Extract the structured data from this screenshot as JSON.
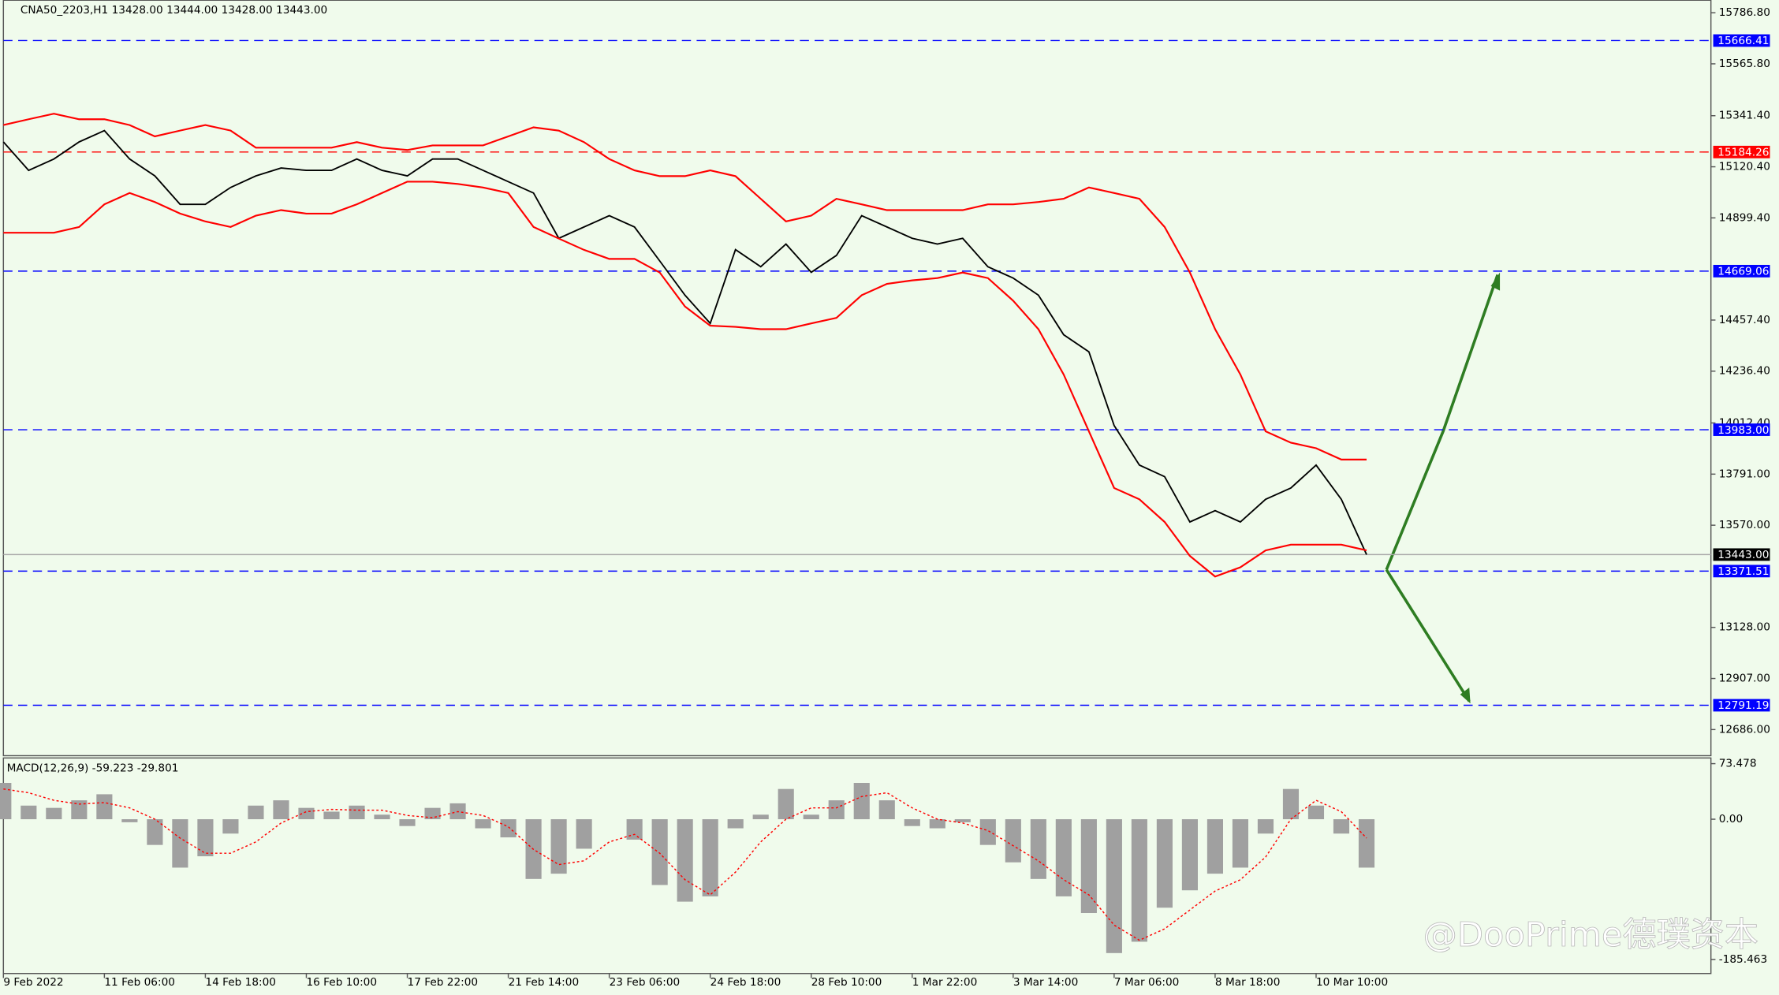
{
  "chart_data": [
    {
      "type": "line",
      "title": "CNA50_2203,H1  13428.00 13444.00 13428.00 13443.00",
      "categories": [
        "9 Feb 2022",
        null,
        null,
        null,
        "11 Feb 06:00",
        null,
        null,
        null,
        "14 Feb 18:00",
        null,
        null,
        null,
        "16 Feb 10:00",
        null,
        null,
        null,
        "17 Feb 22:00",
        null,
        null,
        null,
        "21 Feb 14:00",
        null,
        null,
        null,
        "23 Feb 06:00",
        null,
        null,
        null,
        "24 Feb 18:00",
        null,
        null,
        null,
        "28 Feb 10:00",
        null,
        null,
        null,
        "1 Mar 22:00",
        null,
        null,
        null,
        "3 Mar 14:00",
        null,
        null,
        null,
        "7 Mar 06:00",
        null,
        null,
        null,
        "8 Mar 18:00",
        null,
        null,
        null,
        "10 Mar 10:00",
        null,
        null
      ],
      "series": [
        {
          "color": "#000000",
          "values": [
            15228,
            15105,
            15154,
            15228,
            15277,
            15154,
            15081,
            14958,
            14958,
            15031,
            15081,
            15115,
            15105,
            15105,
            15154,
            15105,
            15081,
            15154,
            15154,
            15105,
            15056,
            15007,
            14811,
            14860,
            14909,
            14860,
            14713,
            14565,
            14443,
            14762,
            14688,
            14786,
            14664,
            14737,
            14909,
            14860,
            14811,
            14786,
            14811,
            14688,
            14639,
            14565,
            14394,
            14320,
            14001,
            13830,
            13780,
            13584,
            13633,
            13584,
            13682,
            13731,
            13830,
            13682,
            13443
          ]
        },
        {
          "color": "#ff0000",
          "values": [
            15301,
            15326,
            15350,
            15326,
            15326,
            15301,
            15252,
            15277,
            15301,
            15277,
            15203,
            15203,
            15203,
            15203,
            15227,
            15203,
            15193,
            15213,
            15213,
            15213,
            15252,
            15291,
            15277,
            15227,
            15154,
            15105,
            15080,
            15080,
            15105,
            15080,
            14982,
            14884,
            14909,
            14982,
            14958,
            14933,
            14933,
            14933,
            14933,
            14958,
            14958,
            14968,
            14982,
            15031,
            15007,
            14982,
            14860,
            14663,
            14418,
            14222,
            13976,
            13927,
            13903,
            13854,
            13854
          ]
        },
        {
          "color": "#ff0000",
          "values": [
            14835,
            14835,
            14835,
            14860,
            14958,
            15007,
            14968,
            14918,
            14884,
            14860,
            14909,
            14933,
            14918,
            14918,
            14958,
            15007,
            15056,
            15056,
            15046,
            15031,
            15007,
            14860,
            14810,
            14761,
            14722,
            14722,
            14663,
            14516,
            14433,
            14428,
            14418,
            14418,
            14443,
            14467,
            14565,
            14614,
            14629,
            14639,
            14663,
            14639,
            14541,
            14418,
            14222,
            13976,
            13731,
            13682,
            13584,
            13437,
            13348,
            13388,
            13461,
            13486,
            13486,
            13486,
            13461
          ]
        }
      ],
      "ylim": [
        12573,
        15841
      ],
      "yticks": [
        {
          "value": 15786.8,
          "label": "15786.80"
        },
        {
          "value": 15565.8,
          "label": "15565.80"
        },
        {
          "value": 15341.4,
          "label": "15341.40"
        },
        {
          "value": 15120.4,
          "label": "15120.40"
        },
        {
          "value": 14899.4,
          "label": "14899.40"
        },
        {
          "value": 14457.4,
          "label": "14457.40"
        },
        {
          "value": 14236.4,
          "label": "14236.40"
        },
        {
          "value": 14012.4,
          "label": "14012.40"
        },
        {
          "value": 13791,
          "label": "13791.00"
        },
        {
          "value": 13570,
          "label": "13570.00"
        },
        {
          "value": 13128,
          "label": "13128.00"
        },
        {
          "value": 12907,
          "label": "12907.00"
        },
        {
          "value": 12686,
          "label": "12686.00"
        }
      ],
      "levels": [
        {
          "value": 15666.41,
          "label": "15666.41",
          "color": "#0000ff"
        },
        {
          "value": 15184.26,
          "label": "15184.26",
          "color": "#ff0000"
        },
        {
          "value": 14669.06,
          "label": "14669.06",
          "color": "#0000ff"
        },
        {
          "value": 13983,
          "label": "13983.00",
          "color": "#0000ff"
        },
        {
          "value": 13443,
          "label": "13443.00",
          "color": "#000000"
        },
        {
          "value": 13371.51,
          "label": "13371.51",
          "color": "#0000ff"
        },
        {
          "value": 12791.19,
          "label": "12791.19",
          "color": "#0000ff"
        }
      ]
    },
    {
      "type": "bar",
      "title": "MACD(12,26,9) -59.223 -29.801",
      "values": [
        48,
        18,
        15,
        25,
        33,
        -4,
        -34,
        -64,
        -49,
        -19,
        18,
        25,
        15,
        10,
        18,
        6,
        -9,
        15,
        21,
        -12,
        -24,
        -79,
        -72,
        -39,
        0,
        -27,
        -87,
        -109,
        -102,
        -12,
        6,
        40,
        6,
        25,
        48,
        25,
        -9,
        -12,
        -4,
        -34,
        -57,
        -79,
        -102,
        -124,
        -177,
        -162,
        -117,
        -94,
        -72,
        -64,
        -19,
        40,
        18,
        -19,
        -64
      ],
      "color": "#a0a0a0",
      "signal": {
        "color": "#ff0000",
        "values": [
          40,
          35,
          25,
          20,
          22,
          15,
          0,
          -25,
          -45,
          -45,
          -30,
          -5,
          10,
          13,
          12,
          12,
          5,
          2,
          10,
          5,
          -10,
          -40,
          -60,
          -55,
          -30,
          -20,
          -45,
          -80,
          -100,
          -70,
          -30,
          0,
          15,
          15,
          30,
          35,
          15,
          0,
          -5,
          -15,
          -35,
          -55,
          -80,
          -100,
          -140,
          -160,
          -145,
          -120,
          -95,
          -80,
          -50,
          0,
          25,
          10,
          -25
        ]
      },
      "ylim": [
        -204,
        81
      ],
      "yticks": [
        {
          "value": 73.478,
          "label": "73.478"
        },
        {
          "value": 0,
          "label": "0.00"
        },
        {
          "value": -185.463,
          "label": "-185.463"
        }
      ]
    }
  ],
  "watermark": "@DooPrime德璞资本"
}
